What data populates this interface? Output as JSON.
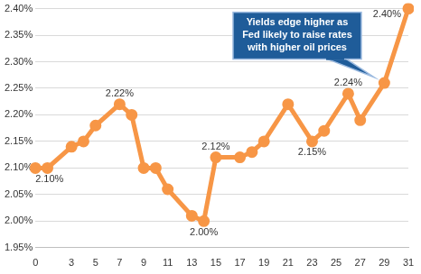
{
  "chart_data": {
    "type": "line",
    "annotation": "Yields edge higher as Fed likely to raise rates with higher oil prices",
    "x": [
      0,
      1,
      3,
      4,
      5,
      7,
      8,
      9,
      10,
      11,
      13,
      14,
      15,
      17,
      18,
      19,
      21,
      23,
      24,
      26,
      27,
      29,
      31
    ],
    "values": [
      2.1,
      2.1,
      2.14,
      2.15,
      2.18,
      2.22,
      2.2,
      2.1,
      2.1,
      2.06,
      2.01,
      2.0,
      2.12,
      2.12,
      2.13,
      2.15,
      2.22,
      2.15,
      2.17,
      2.24,
      2.19,
      2.26,
      2.4
    ],
    "value_labels": [
      "2.10%",
      null,
      null,
      null,
      null,
      "2.22%",
      null,
      null,
      null,
      null,
      null,
      "2.00%",
      "2.12%",
      null,
      null,
      null,
      null,
      "2.15%",
      null,
      "2.24%",
      null,
      null,
      "2.40%"
    ],
    "data_labels": true,
    "color": "#f79646",
    "marker": "circle",
    "grid": true,
    "xlim": [
      0,
      31
    ],
    "xticks": [
      0,
      3,
      5,
      7,
      9,
      11,
      13,
      15,
      17,
      19,
      21,
      23,
      25,
      27,
      29,
      31
    ],
    "ylim": [
      1.95,
      2.4
    ],
    "yticks": [
      {
        "value": 1.95,
        "label": "1.95%"
      },
      {
        "value": 2.0,
        "label": "2.00%"
      },
      {
        "value": 2.05,
        "label": "2.05%"
      },
      {
        "value": 2.1,
        "label": "2.10%"
      },
      {
        "value": 2.15,
        "label": "2.15%"
      },
      {
        "value": 2.2,
        "label": "2.20%"
      },
      {
        "value": 2.25,
        "label": "2.25%"
      },
      {
        "value": 2.3,
        "label": "2.30%"
      },
      {
        "value": 2.35,
        "label": "2.35%"
      },
      {
        "value": 2.4,
        "label": "2.40%"
      }
    ]
  }
}
